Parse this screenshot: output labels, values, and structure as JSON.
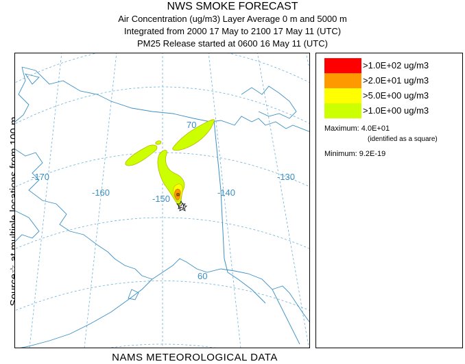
{
  "header": {
    "title": "NWS SMOKE FORECAST",
    "line1": "Air Concentration (ug/m3) Layer Average    0 m and  5000 m",
    "line2": "Integrated from 2000 17 May to 2100 17 May 11 (UTC)",
    "line3": "PM25 Release started at 0600 16 May 11 (UTC)"
  },
  "side_label": "Source☆ at multiple locations from 100 m",
  "bottom_label": "NAMS METEOROLOGICAL DATA",
  "map": {
    "longitude_labels": [
      "-170",
      "-160",
      "-150",
      "-140",
      "-130"
    ],
    "latitude_labels": [
      "70",
      "60"
    ],
    "colors": {
      "coast": "#3a8fc4",
      "grid": "#6aaed8",
      "border": "#3a8fc4",
      "plume_outline": "#b8b800",
      "source_marker": "#000000"
    }
  },
  "legend": {
    "items": [
      {
        "label": ">1.0E+02 ug/m3",
        "color": "#ff0000"
      },
      {
        "label": ">2.0E+01 ug/m3",
        "color": "#ff9900"
      },
      {
        "label": ">5.0E+00 ug/m3",
        "color": "#ffff00"
      },
      {
        "label": ">1.0E+00 ug/m3",
        "color": "#ccff00"
      }
    ],
    "maximum": "Maximum: 4.0E+01",
    "maximum_note": "(identified as a square)",
    "minimum": "Minimum: 9.2E-19"
  }
}
